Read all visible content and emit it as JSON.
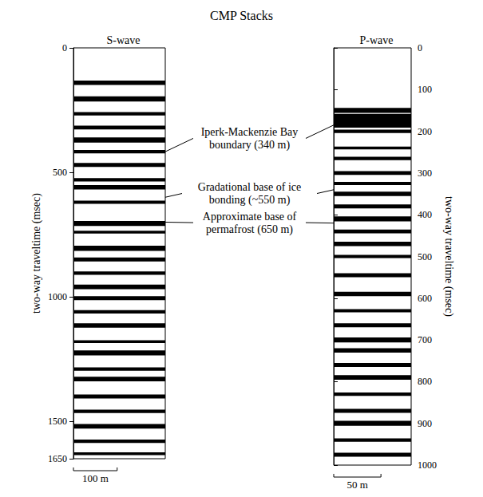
{
  "title": "CMP Stacks",
  "chart_data": [
    {
      "type": "seismic",
      "title": "S-wave",
      "ylabel": "two-way traveltime (msec)",
      "ylim": [
        0,
        1650
      ],
      "yticks": [
        0,
        500,
        1000,
        1500
      ],
      "xlim": [
        0,
        210
      ],
      "tick_labels": "y",
      "color": "#000000",
      "scale_bar": {
        "length": 100,
        "label": "100 m"
      },
      "reflectors": [
        {
          "time": 140,
          "amplitude": 0.8
        },
        {
          "time": 205,
          "amplitude": 0.9
        },
        {
          "time": 265,
          "amplitude": 0.6
        },
        {
          "time": 320,
          "amplitude": 0.7
        },
        {
          "time": 370,
          "amplitude": 0.9
        },
        {
          "time": 417,
          "amplitude": 0.6
        },
        {
          "time": 470,
          "amplitude": 0.7
        },
        {
          "time": 530,
          "amplitude": 0.6
        },
        {
          "time": 560,
          "amplitude": 0.8
        },
        {
          "time": 620,
          "amplitude": 0.6
        },
        {
          "time": 705,
          "amplitude": 0.9
        },
        {
          "time": 740,
          "amplitude": 0.5
        },
        {
          "time": 805,
          "amplitude": 0.9
        },
        {
          "time": 850,
          "amplitude": 0.7
        },
        {
          "time": 905,
          "amplitude": 0.6
        },
        {
          "time": 960,
          "amplitude": 0.8
        },
        {
          "time": 1005,
          "amplitude": 0.7
        },
        {
          "time": 1060,
          "amplitude": 0.6
        },
        {
          "time": 1115,
          "amplitude": 0.8
        },
        {
          "time": 1180,
          "amplitude": 0.5
        },
        {
          "time": 1225,
          "amplitude": 0.9
        },
        {
          "time": 1290,
          "amplitude": 0.6
        },
        {
          "time": 1330,
          "amplitude": 0.8
        },
        {
          "time": 1400,
          "amplitude": 0.7
        },
        {
          "time": 1460,
          "amplitude": 0.6
        },
        {
          "time": 1520,
          "amplitude": 0.8
        },
        {
          "time": 1580,
          "amplitude": 0.6
        },
        {
          "time": 1630,
          "amplitude": 0.5
        }
      ]
    },
    {
      "type": "seismic",
      "title": "P-wave",
      "ylabel": "two-way traveltime (msec)",
      "ylim": [
        0,
        1000
      ],
      "yticks": [
        0,
        100,
        200,
        300,
        400,
        500,
        600,
        700,
        800,
        900,
        1000
      ],
      "xlim": [
        0,
        82
      ],
      "tick_labels": "y",
      "color": "#000000",
      "scale_bar": {
        "length": 50,
        "label": "50 m"
      },
      "reflectors": [
        {
          "time": 150,
          "amplitude": 0.9
        },
        {
          "time": 165,
          "amplitude": 1.0
        },
        {
          "time": 175,
          "amplitude": 1.0
        },
        {
          "time": 185,
          "amplitude": 0.9
        },
        {
          "time": 200,
          "amplitude": 0.6
        },
        {
          "time": 240,
          "amplitude": 0.5
        },
        {
          "time": 265,
          "amplitude": 0.6
        },
        {
          "time": 300,
          "amplitude": 0.7
        },
        {
          "time": 325,
          "amplitude": 0.6
        },
        {
          "time": 350,
          "amplitude": 0.8
        },
        {
          "time": 380,
          "amplitude": 0.7
        },
        {
          "time": 410,
          "amplitude": 0.9
        },
        {
          "time": 440,
          "amplitude": 0.7
        },
        {
          "time": 470,
          "amplitude": 0.8
        },
        {
          "time": 500,
          "amplitude": 0.6
        },
        {
          "time": 545,
          "amplitude": 0.7
        },
        {
          "time": 590,
          "amplitude": 0.8
        },
        {
          "time": 630,
          "amplitude": 0.6
        },
        {
          "time": 665,
          "amplitude": 0.7
        },
        {
          "time": 700,
          "amplitude": 0.9
        },
        {
          "time": 725,
          "amplitude": 0.8
        },
        {
          "time": 760,
          "amplitude": 0.7
        },
        {
          "time": 790,
          "amplitude": 0.8
        },
        {
          "time": 830,
          "amplitude": 0.6
        },
        {
          "time": 870,
          "amplitude": 0.7
        },
        {
          "time": 900,
          "amplitude": 0.9
        },
        {
          "time": 940,
          "amplitude": 0.6
        },
        {
          "time": 975,
          "amplitude": 0.7
        }
      ]
    }
  ],
  "annotations": [
    {
      "text": "Iperk-Mackenzie Bay boundary (340 m)",
      "s_time": 417,
      "p_time": 185
    },
    {
      "text": "Gradational base of ice bonding (~550 m)",
      "s_time": 600,
      "p_time": 340
    },
    {
      "text": "Approximate base of permafrost (650 m)",
      "s_time": 700,
      "p_time": 420
    }
  ]
}
